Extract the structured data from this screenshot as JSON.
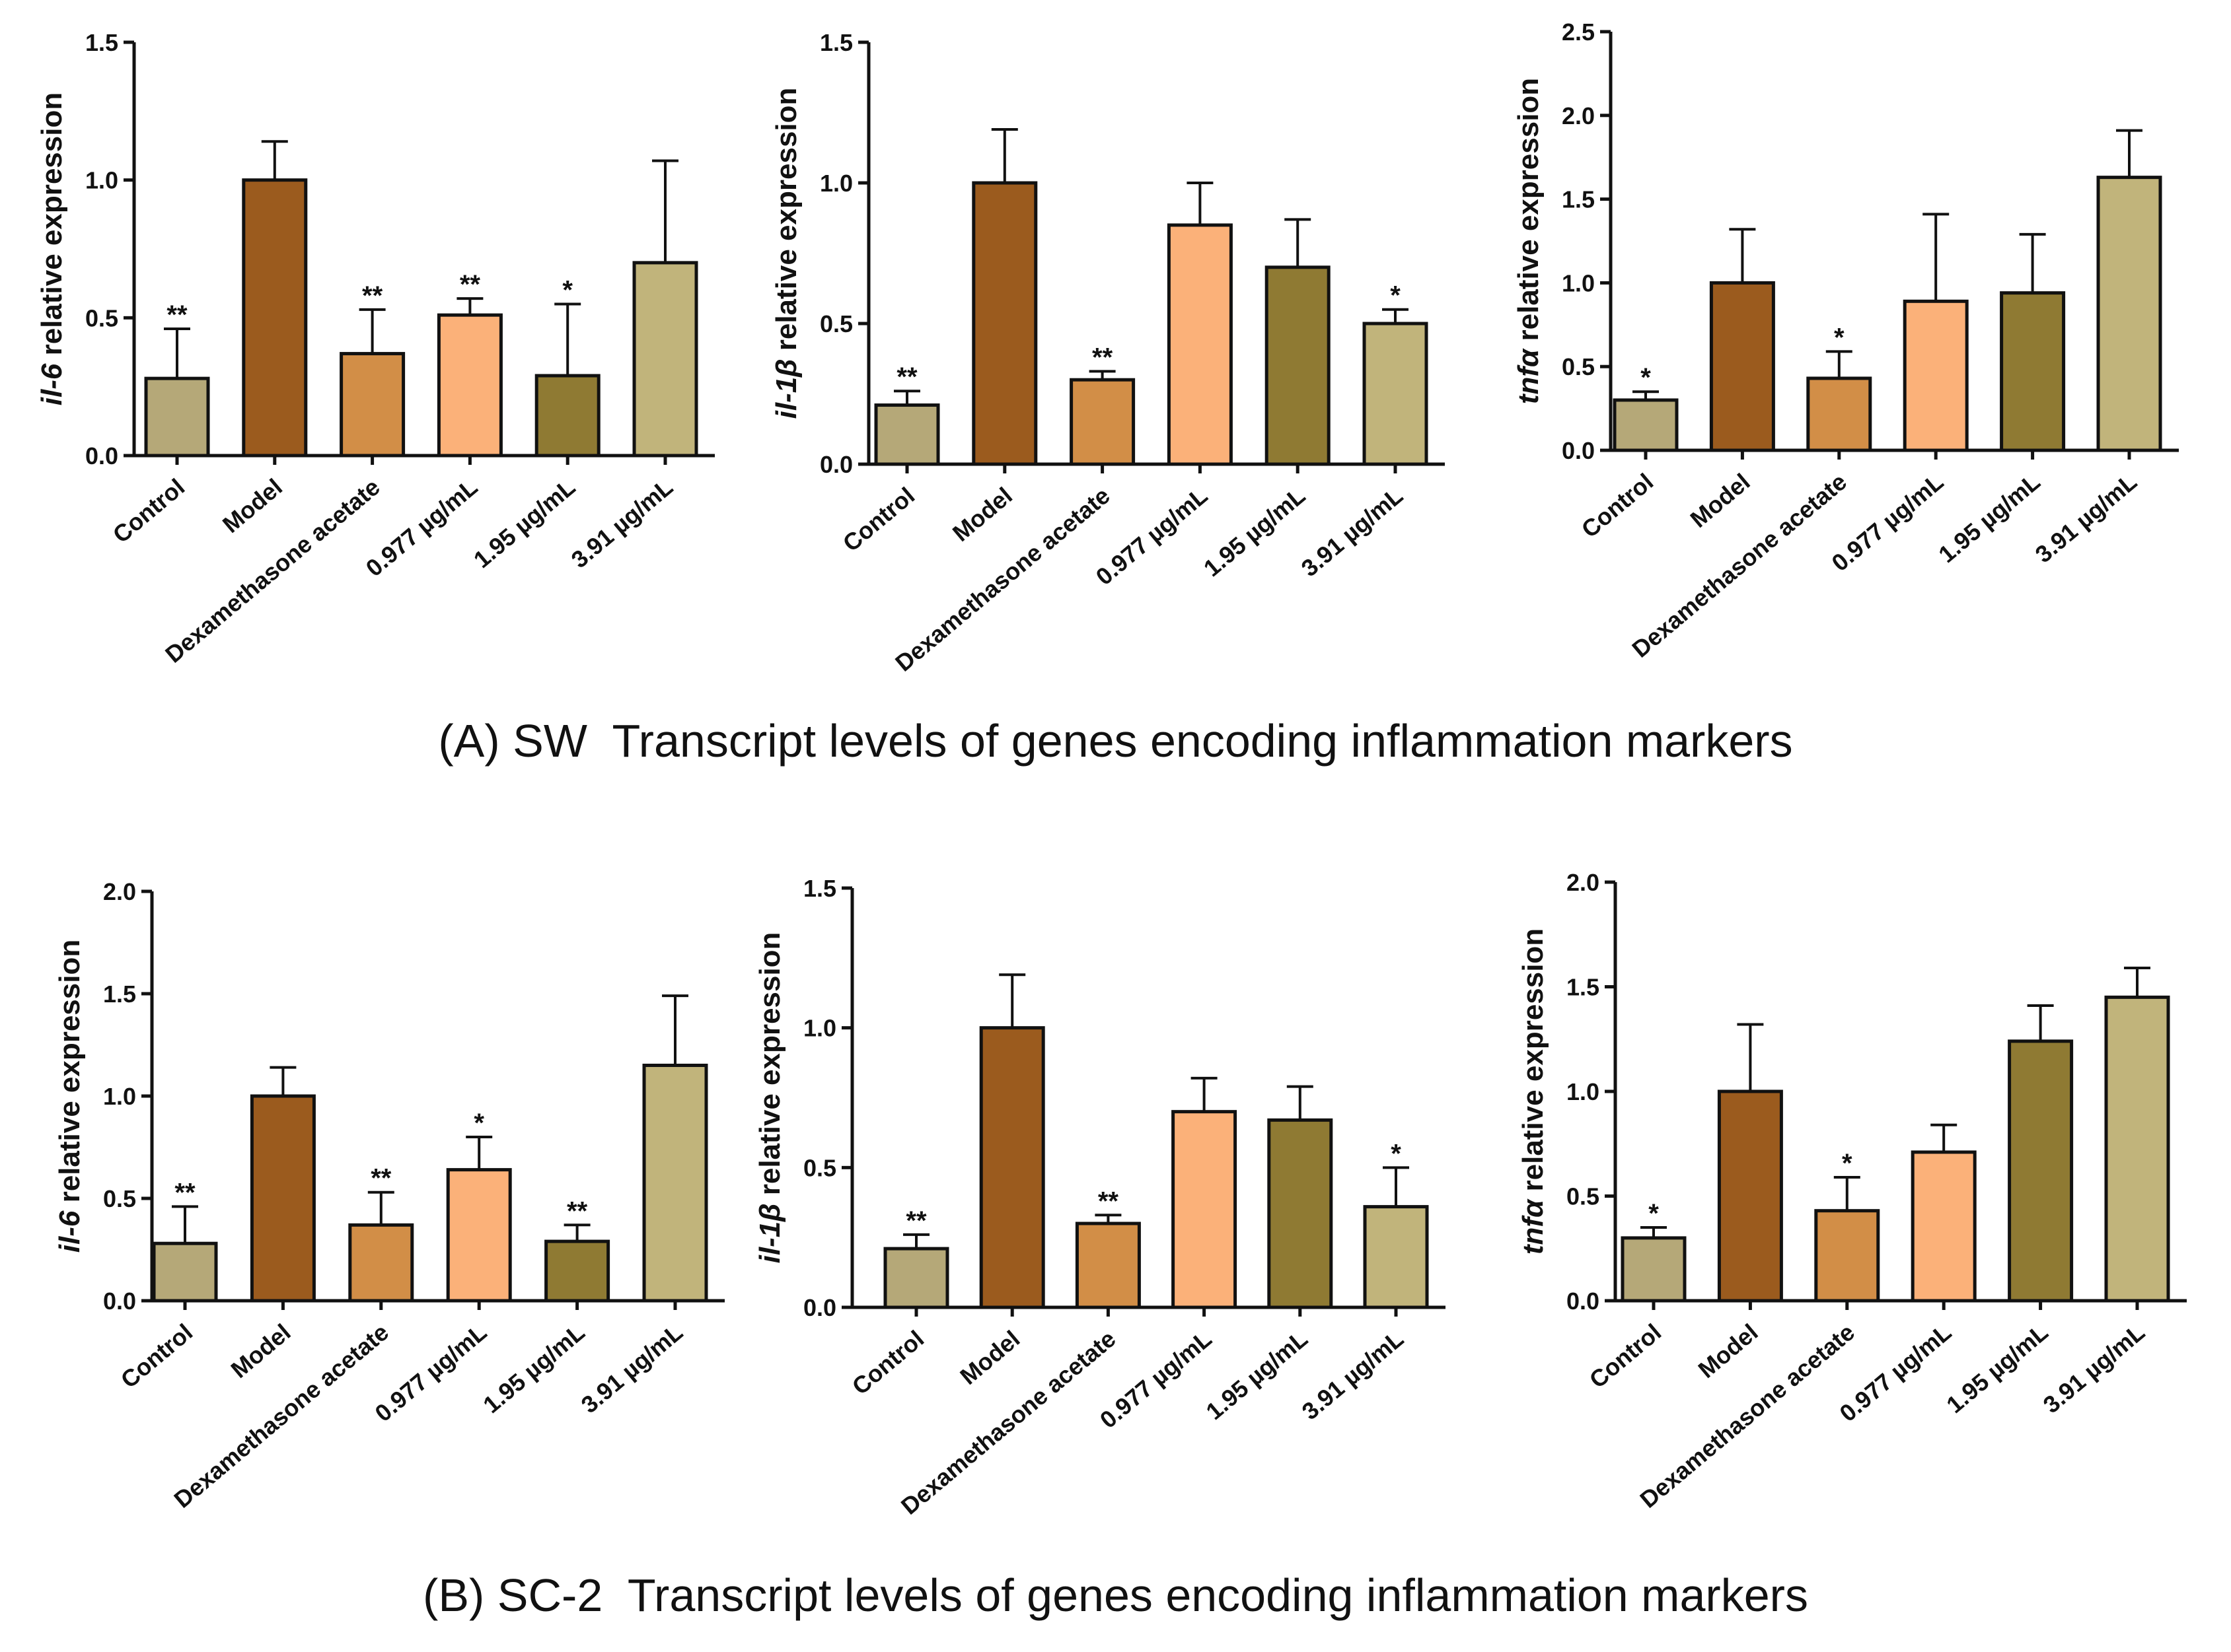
{
  "captions": {
    "a": "(A) SW  Transcript levels of genes encoding inflammation markers",
    "b": "(B) SC-2  Transcript levels of genes encoding inflammation markers"
  },
  "colors": [
    "#b5a878",
    "#9b5b1e",
    "#d28e47",
    "#fbb179",
    "#8f7a33",
    "#c1b47b"
  ],
  "chart_data": [
    {
      "type": "bar",
      "panel": "A",
      "gene": "il-6",
      "ylabel_suffix": "relative expression",
      "categories": [
        "Control",
        "Model",
        "Dexamethasone acetate",
        "0.977 µg/mL",
        "1.95 µg/mL",
        "3.91 µg/mL"
      ],
      "values": [
        0.28,
        1.0,
        0.37,
        0.51,
        0.29,
        0.7
      ],
      "errors": [
        0.18,
        0.14,
        0.16,
        0.06,
        0.26,
        0.37
      ],
      "significance": [
        "**",
        "",
        "**",
        "**",
        "*",
        ""
      ],
      "ylim": [
        0,
        1.5
      ],
      "ticks": [
        "0.0",
        "0.5",
        "1.0",
        "1.5"
      ]
    },
    {
      "type": "bar",
      "panel": "A",
      "gene": "il-1β",
      "ylabel_suffix": "relative expression",
      "categories": [
        "Control",
        "Model",
        "Dexamethasone acetate",
        "0.977 µg/mL",
        "1.95 µg/mL",
        "3.91 µg/mL"
      ],
      "values": [
        0.21,
        1.0,
        0.3,
        0.85,
        0.7,
        0.5
      ],
      "errors": [
        0.05,
        0.19,
        0.03,
        0.15,
        0.17,
        0.05
      ],
      "significance": [
        "**",
        "",
        "**",
        "",
        "",
        "*"
      ],
      "ylim": [
        0,
        1.5
      ],
      "ticks": [
        "0.0",
        "0.5",
        "1.0",
        "1.5"
      ]
    },
    {
      "type": "bar",
      "panel": "A",
      "gene": "tnfα",
      "ylabel_suffix": "relative expression",
      "categories": [
        "Control",
        "Model",
        "Dexamethasone acetate",
        "0.977 µg/mL",
        "1.95 µg/mL",
        "3.91 µg/mL"
      ],
      "values": [
        0.3,
        1.0,
        0.43,
        0.89,
        0.94,
        1.63
      ],
      "errors": [
        0.05,
        0.32,
        0.16,
        0.52,
        0.35,
        0.28
      ],
      "significance": [
        "*",
        "",
        "*",
        "",
        "",
        ""
      ],
      "ylim": [
        0,
        2.5
      ],
      "ticks": [
        "0.0",
        "0.5",
        "1.0",
        "1.5",
        "2.0",
        "2.5"
      ]
    },
    {
      "type": "bar",
      "panel": "B",
      "gene": "il-6",
      "ylabel_suffix": "relative expression",
      "categories": [
        "Control",
        "Model",
        "Dexamethasone acetate",
        "0.977 µg/mL",
        "1.95 µg/mL",
        "3.91 µg/mL"
      ],
      "values": [
        0.28,
        1.0,
        0.37,
        0.64,
        0.29,
        1.15
      ],
      "errors": [
        0.18,
        0.14,
        0.16,
        0.16,
        0.08,
        0.34
      ],
      "significance": [
        "**",
        "",
        "**",
        "*",
        "**",
        ""
      ],
      "ylim": [
        0,
        2.0
      ],
      "ticks": [
        "0.0",
        "0.5",
        "1.0",
        "1.5",
        "2.0"
      ]
    },
    {
      "type": "bar",
      "panel": "B",
      "gene": "il-1β",
      "ylabel_suffix": "relative expression",
      "categories": [
        "Control",
        "Model",
        "Dexamethasone acetate",
        "0.977 µg/mL",
        "1.95 µg/mL",
        "3.91 µg/mL"
      ],
      "values": [
        0.21,
        1.0,
        0.3,
        0.7,
        0.67,
        0.36
      ],
      "errors": [
        0.05,
        0.19,
        0.03,
        0.12,
        0.12,
        0.14
      ],
      "significance": [
        "**",
        "",
        "**",
        "",
        "",
        "*"
      ],
      "ylim": [
        0,
        1.5
      ],
      "ticks": [
        "0.0",
        "0.5",
        "1.0",
        "1.5"
      ]
    },
    {
      "type": "bar",
      "panel": "B",
      "gene": "tnfα",
      "ylabel_suffix": "relative expression",
      "categories": [
        "Control",
        "Model",
        "Dexamethasone acetate",
        "0.977 µg/mL",
        "1.95 µg/mL",
        "3.91 µg/mL"
      ],
      "values": [
        0.3,
        1.0,
        0.43,
        0.71,
        1.24,
        1.45
      ],
      "errors": [
        0.05,
        0.32,
        0.16,
        0.13,
        0.17,
        0.14
      ],
      "significance": [
        "*",
        "",
        "*",
        "",
        "",
        ""
      ],
      "ylim": [
        0,
        2.0
      ],
      "ticks": [
        "0.0",
        "0.5",
        "1.0",
        "1.5",
        "2.0"
      ]
    }
  ]
}
